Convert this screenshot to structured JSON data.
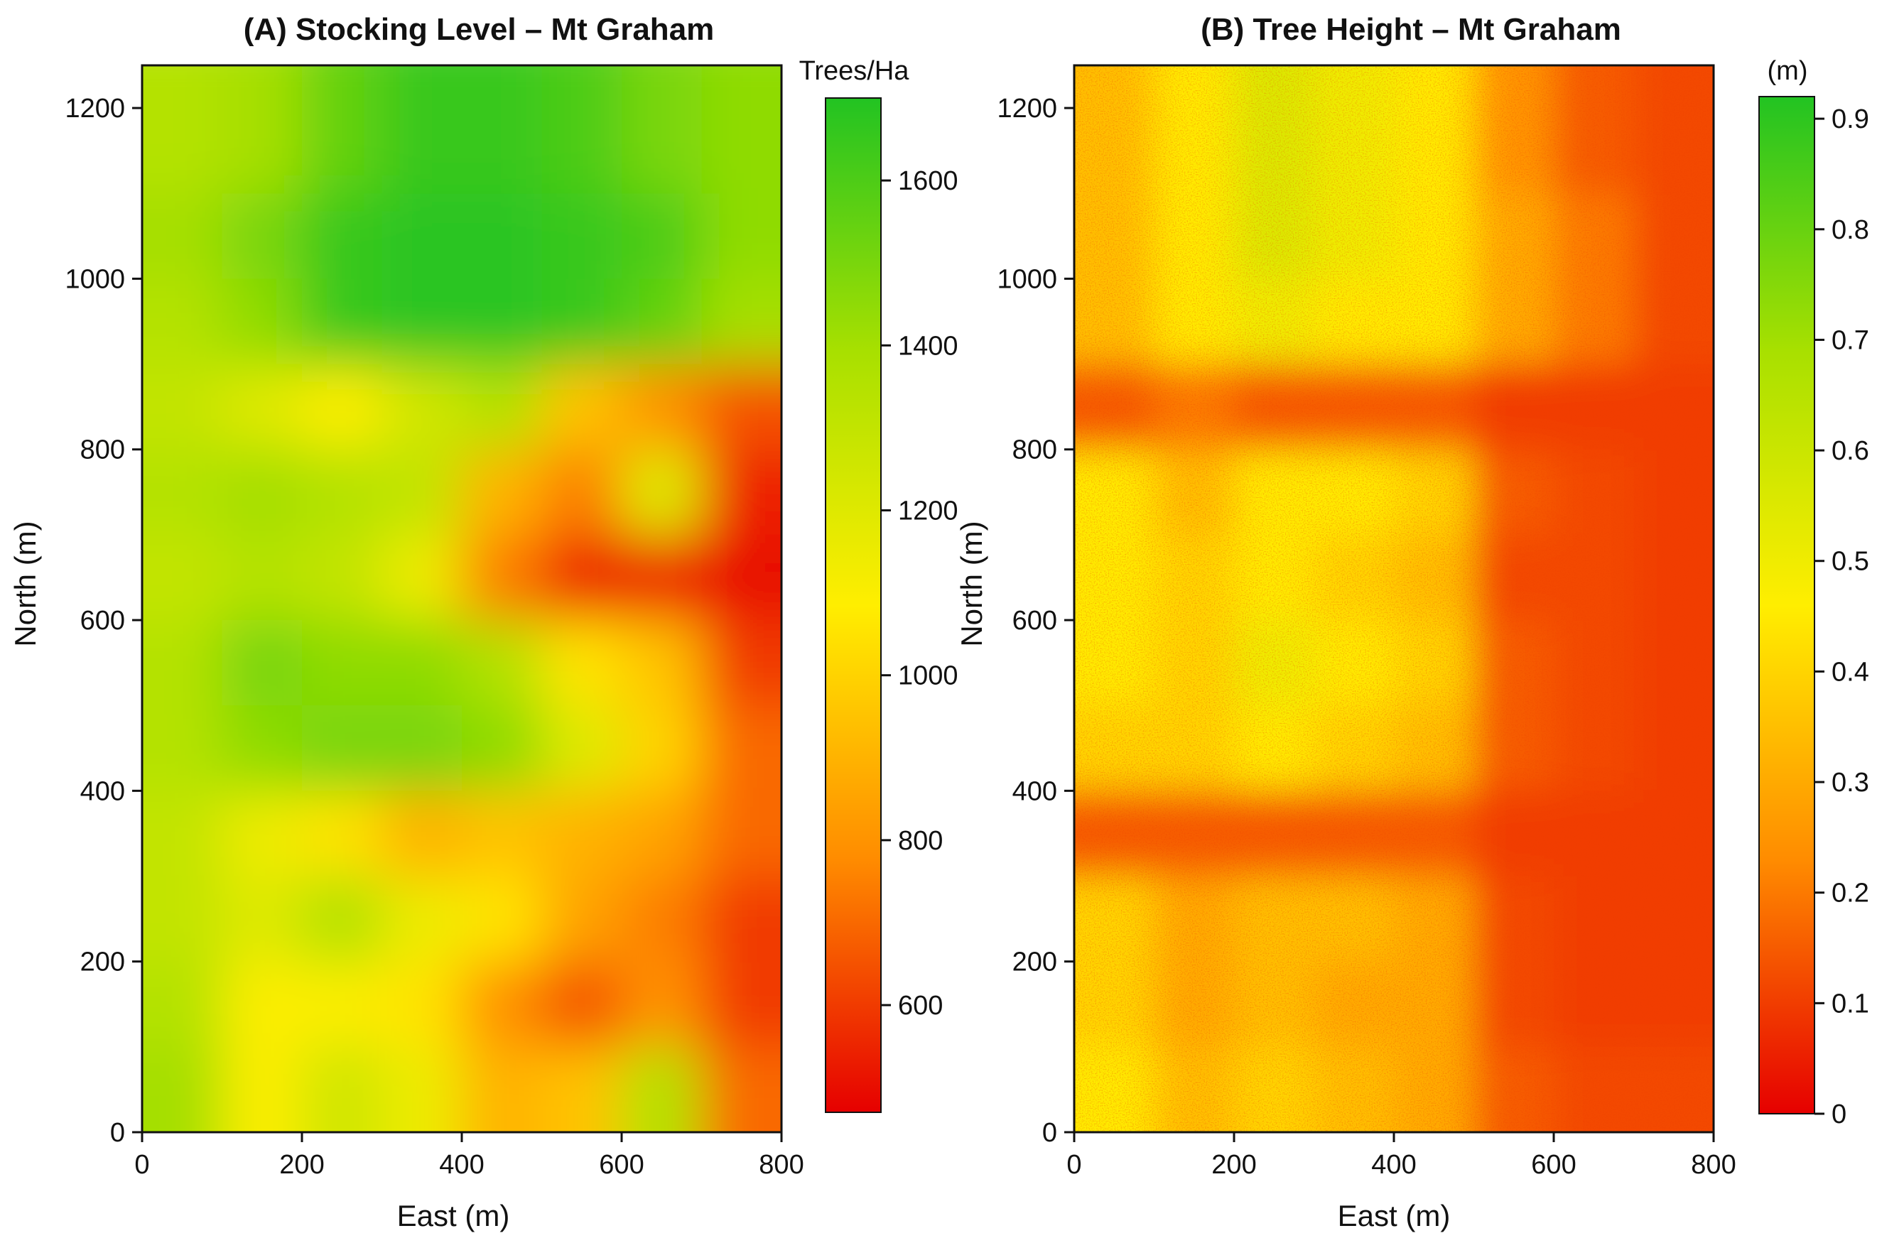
{
  "chart_data": [
    {
      "type": "heatmap",
      "title": "(A) Stocking Level – Mt Graham",
      "xlabel": "East (m)",
      "ylabel": "North (m)",
      "xlim": [
        0,
        800
      ],
      "ylim": [
        0,
        1250
      ],
      "xticks": [
        "0",
        "200",
        "400",
        "600",
        "800"
      ],
      "yticks": [
        "0",
        "200",
        "400",
        "600",
        "800",
        "1000",
        "1200"
      ],
      "colorbar": {
        "title": "Trees/Ha",
        "range": [
          470,
          1700
        ],
        "ticks": [
          "600",
          "800",
          "1000",
          "1200",
          "1400",
          "1600"
        ],
        "colors": [
          "#e60000",
          "#ff8c00",
          "#ffee00",
          "#a8e000",
          "#22c322"
        ]
      },
      "x": [
        50,
        150,
        250,
        350,
        450,
        550,
        650,
        750
      ],
      "y": [
        1150,
        1050,
        950,
        850,
        750,
        650,
        550,
        450,
        350,
        250,
        150,
        50
      ],
      "z": [
        [
          1350,
          1400,
          1550,
          1650,
          1650,
          1600,
          1500,
          1450
        ],
        [
          1400,
          1500,
          1650,
          1680,
          1680,
          1650,
          1600,
          1450
        ],
        [
          1350,
          1450,
          1650,
          1680,
          1680,
          1650,
          1550,
          1400
        ],
        [
          1300,
          1200,
          1100,
          1250,
          1350,
          950,
          800,
          650
        ],
        [
          1350,
          1400,
          1350,
          1300,
          900,
          750,
          1200,
          550
        ],
        [
          1300,
          1350,
          1300,
          1150,
          750,
          550,
          550,
          500
        ],
        [
          1350,
          1500,
          1450,
          1450,
          1350,
          1050,
          950,
          600
        ],
        [
          1350,
          1450,
          1500,
          1500,
          1450,
          1200,
          1000,
          700
        ],
        [
          1300,
          1150,
          1050,
          900,
          950,
          900,
          850,
          700
        ],
        [
          1300,
          1200,
          1350,
          1150,
          1050,
          850,
          750,
          600
        ],
        [
          1350,
          1100,
          1100,
          1050,
          800,
          650,
          800,
          600
        ],
        [
          1400,
          1100,
          1250,
          1150,
          900,
          950,
          1350,
          700
        ]
      ]
    },
    {
      "type": "heatmap",
      "title": "(B) Tree Height – Mt Graham",
      "xlabel": "East (m)",
      "ylabel": "North (m)",
      "xlim": [
        0,
        800
      ],
      "ylim": [
        0,
        1250
      ],
      "xticks": [
        "0",
        "200",
        "400",
        "600",
        "800"
      ],
      "yticks": [
        "0",
        "200",
        "400",
        "600",
        "800",
        "1000",
        "1200"
      ],
      "colorbar": {
        "title": "(m)",
        "range": [
          0,
          0.92
        ],
        "ticks": [
          "0",
          "0.1",
          "0.2",
          "0.3",
          "0.4",
          "0.5",
          "0.6",
          "0.7",
          "0.8",
          "0.9"
        ],
        "colors": [
          "#e60000",
          "#ff8c00",
          "#ffee00",
          "#a8e000",
          "#22c322"
        ]
      },
      "x": [
        50,
        150,
        250,
        350,
        450,
        550,
        650,
        750
      ],
      "y": [
        1150,
        1050,
        950,
        850,
        750,
        650,
        550,
        450,
        350,
        250,
        150,
        50
      ],
      "z": [
        [
          0.35,
          0.45,
          0.55,
          0.5,
          0.45,
          0.25,
          0.15,
          0.12
        ],
        [
          0.35,
          0.45,
          0.55,
          0.5,
          0.45,
          0.3,
          0.2,
          0.12
        ],
        [
          0.35,
          0.45,
          0.5,
          0.45,
          0.45,
          0.3,
          0.2,
          0.12
        ],
        [
          0.15,
          0.2,
          0.15,
          0.15,
          0.15,
          0.1,
          0.1,
          0.1
        ],
        [
          0.45,
          0.35,
          0.45,
          0.45,
          0.4,
          0.15,
          0.12,
          0.1
        ],
        [
          0.45,
          0.4,
          0.45,
          0.4,
          0.35,
          0.12,
          0.12,
          0.1
        ],
        [
          0.45,
          0.4,
          0.5,
          0.45,
          0.4,
          0.15,
          0.12,
          0.1
        ],
        [
          0.4,
          0.4,
          0.45,
          0.4,
          0.35,
          0.15,
          0.12,
          0.1
        ],
        [
          0.15,
          0.15,
          0.15,
          0.15,
          0.15,
          0.1,
          0.1,
          0.1
        ],
        [
          0.4,
          0.3,
          0.35,
          0.35,
          0.3,
          0.12,
          0.1,
          0.1
        ],
        [
          0.4,
          0.3,
          0.35,
          0.3,
          0.3,
          0.12,
          0.1,
          0.1
        ],
        [
          0.45,
          0.35,
          0.4,
          0.35,
          0.3,
          0.15,
          0.12,
          0.12
        ]
      ]
    }
  ]
}
